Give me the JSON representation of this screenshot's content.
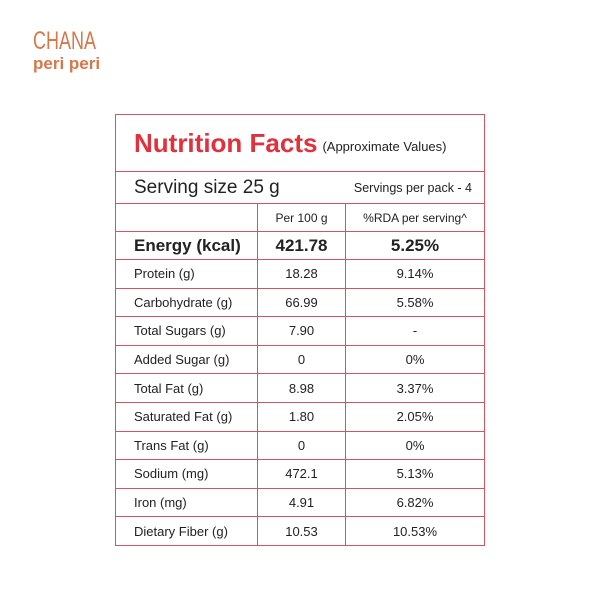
{
  "brand": {
    "line1": "CHANA",
    "line2": "peri peri"
  },
  "title": "Nutrition Facts",
  "subtitle": "(Approximate Values)",
  "serving_size": "Serving size 25 g",
  "servings_per_pack": "Servings per pack - 4",
  "columns": [
    "",
    "Per 100 g",
    "%RDA per serving^"
  ],
  "energy": {
    "label": "Energy (kcal)",
    "per100": "421.78",
    "rda": "5.25%"
  },
  "rows": [
    {
      "label": "Protein (g)",
      "per100": "18.28",
      "rda": "9.14%"
    },
    {
      "label": "Carbohydrate (g)",
      "per100": "66.99",
      "rda": "5.58%"
    },
    {
      "label": "Total Sugars (g)",
      "per100": "7.90",
      "rda": "-"
    },
    {
      "label": "Added Sugar (g)",
      "per100": "0",
      "rda": "0%"
    },
    {
      "label": "Total Fat (g)",
      "per100": "8.98",
      "rda": "3.37%"
    },
    {
      "label": "Saturated Fat (g)",
      "per100": "1.80",
      "rda": "2.05%"
    },
    {
      "label": "Trans Fat (g)",
      "per100": "0",
      "rda": "0%"
    },
    {
      "label": "Sodium (mg)",
      "per100": "472.1",
      "rda": "5.13%"
    },
    {
      "label": "Iron (mg)",
      "per100": "4.91",
      "rda": "6.82%"
    },
    {
      "label": "Dietary Fiber (g)",
      "per100": "10.53",
      "rda": "10.53%"
    }
  ],
  "colors": {
    "title": "#e2303c",
    "border": "#d5555e",
    "brand": "#d9764a"
  }
}
